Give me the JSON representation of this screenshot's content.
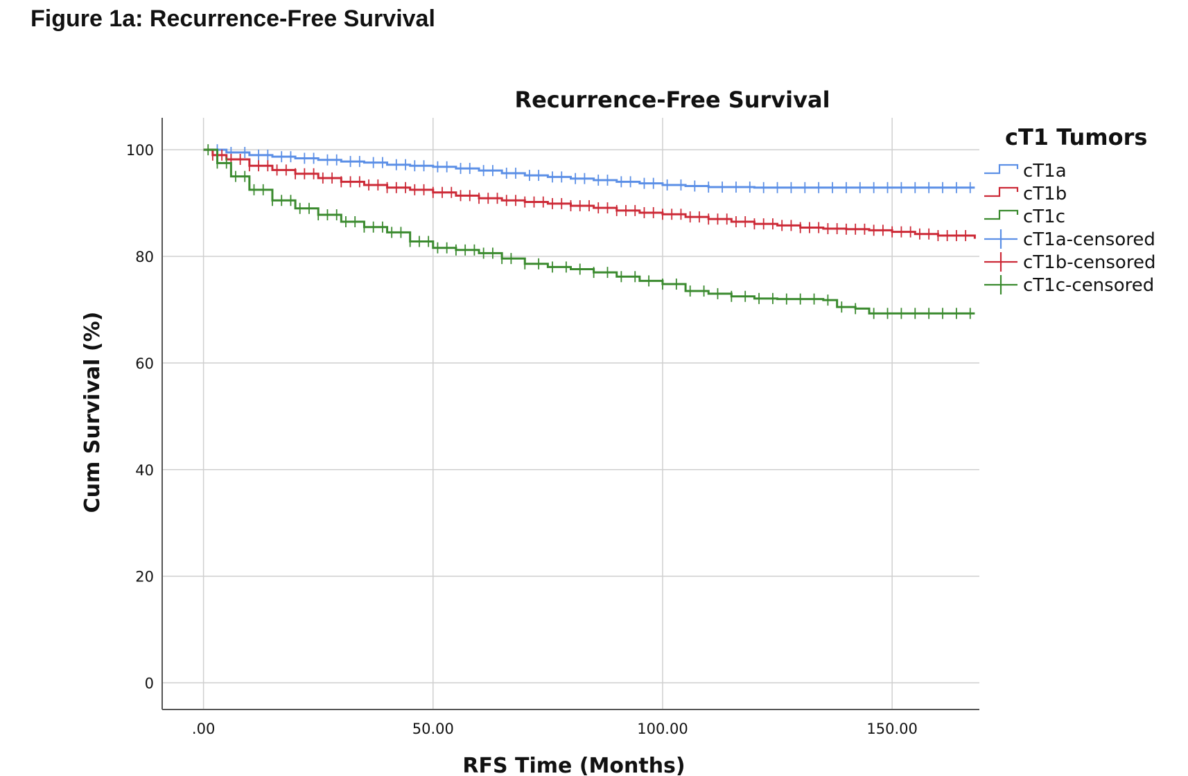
{
  "figure": {
    "heading": "Figure 1a: Recurrence-Free Survival"
  },
  "chart_data": {
    "type": "line",
    "step": true,
    "title": "Recurrence-Free Survival",
    "xlabel": "RFS Time (Months)",
    "ylabel": "Cum Survival (%)",
    "xlim": [
      -9,
      169
    ],
    "ylim": [
      -5,
      106
    ],
    "xticks": [
      0,
      50,
      100,
      150
    ],
    "xtick_labels": [
      ".00",
      "50.00",
      "100.00",
      "150.00"
    ],
    "yticks": [
      0,
      20,
      40,
      60,
      80,
      100
    ],
    "ytick_labels": [
      "0",
      "20",
      "40",
      "60",
      "80",
      "100"
    ],
    "grid": true,
    "legend": {
      "title": "cT1 Tumors",
      "position": "right",
      "entries": [
        "cT1a",
        "cT1b",
        "cT1c",
        "cT1a-censored",
        "cT1b-censored",
        "cT1c-censored"
      ]
    },
    "series": [
      {
        "name": "cT1a",
        "color": "#5b8fe6",
        "x": [
          0,
          5,
          10,
          15,
          20,
          25,
          30,
          35,
          40,
          45,
          50,
          55,
          60,
          65,
          70,
          75,
          80,
          85,
          90,
          95,
          100,
          105,
          110,
          120,
          130,
          140,
          150,
          160,
          168
        ],
        "y": [
          100,
          99.5,
          99,
          98.7,
          98.4,
          98.1,
          97.8,
          97.6,
          97.2,
          97,
          96.8,
          96.5,
          96.1,
          95.6,
          95.2,
          94.9,
          94.6,
          94.3,
          94,
          93.7,
          93.4,
          93.2,
          93,
          92.9,
          92.9,
          92.9,
          92.9,
          92.9,
          92.9
        ],
        "censored_x": [
          3,
          6,
          9,
          12,
          14,
          17,
          19,
          22,
          24,
          27,
          29,
          32,
          34,
          37,
          39,
          42,
          44,
          46,
          48,
          51,
          53,
          56,
          58,
          61,
          63,
          66,
          68,
          71,
          73,
          76,
          78,
          81,
          83,
          86,
          88,
          91,
          93,
          96,
          98,
          101,
          104,
          107,
          110,
          113,
          116,
          119,
          122,
          125,
          128,
          131,
          134,
          137,
          140,
          143,
          146,
          149,
          152,
          155,
          158,
          161,
          164,
          167
        ]
      },
      {
        "name": "cT1b",
        "color": "#cc2936",
        "x": [
          0,
          2,
          5,
          10,
          15,
          20,
          25,
          30,
          35,
          40,
          45,
          50,
          55,
          60,
          65,
          70,
          75,
          80,
          85,
          90,
          95,
          100,
          105,
          110,
          115,
          120,
          125,
          130,
          135,
          140,
          145,
          150,
          155,
          160,
          168
        ],
        "y": [
          100,
          99,
          98.2,
          97,
          96.2,
          95.5,
          94.7,
          94,
          93.4,
          92.9,
          92.5,
          92,
          91.4,
          90.9,
          90.5,
          90.2,
          89.9,
          89.5,
          89.1,
          88.6,
          88.2,
          87.9,
          87.4,
          87,
          86.5,
          86.1,
          85.8,
          85.4,
          85.2,
          85.1,
          84.9,
          84.6,
          84.2,
          83.9,
          83.3
        ],
        "censored_x": [
          2,
          4,
          6,
          8,
          10,
          12,
          14,
          16,
          18,
          20,
          22,
          24,
          26,
          28,
          30,
          32,
          34,
          36,
          38,
          40,
          42,
          44,
          46,
          48,
          50,
          52,
          54,
          56,
          58,
          60,
          62,
          64,
          66,
          68,
          70,
          72,
          74,
          76,
          78,
          80,
          82,
          84,
          86,
          88,
          90,
          92,
          94,
          96,
          98,
          100,
          102,
          104,
          106,
          108,
          110,
          112,
          114,
          116,
          118,
          120,
          122,
          124,
          126,
          128,
          130,
          132,
          134,
          136,
          138,
          140,
          142,
          144,
          146,
          148,
          150,
          152,
          154,
          156,
          158,
          160,
          162,
          164,
          166
        ]
      },
      {
        "name": "cT1c",
        "color": "#3a8a2e",
        "x": [
          0,
          3,
          6,
          10,
          15,
          20,
          25,
          30,
          35,
          40,
          45,
          50,
          55,
          60,
          65,
          70,
          75,
          80,
          85,
          90,
          95,
          100,
          105,
          110,
          115,
          120,
          125,
          130,
          135,
          138,
          142,
          145,
          150,
          155,
          160,
          168
        ],
        "y": [
          100,
          97.5,
          95,
          92.5,
          90.5,
          89,
          87.8,
          86.5,
          85.5,
          84.5,
          82.8,
          81.6,
          81.2,
          80.6,
          79.6,
          78.6,
          78,
          77.6,
          77,
          76.2,
          75.4,
          74.8,
          73.5,
          73,
          72.5,
          72.1,
          72,
          72,
          71.8,
          70.5,
          70.2,
          69.3,
          69.3,
          69.3,
          69.3,
          69.3
        ],
        "censored_x": [
          1,
          3,
          5,
          7,
          9,
          11,
          13,
          15,
          17,
          19,
          21,
          23,
          25,
          27,
          29,
          31,
          33,
          35,
          37,
          39,
          41,
          43,
          45,
          47,
          49,
          51,
          53,
          55,
          57,
          59,
          61,
          63,
          65,
          67,
          70,
          73,
          76,
          79,
          82,
          85,
          88,
          91,
          94,
          97,
          100,
          103,
          106,
          109,
          112,
          115,
          118,
          121,
          124,
          127,
          130,
          133,
          136,
          139,
          142,
          146,
          149,
          152,
          155,
          158,
          161,
          164,
          167
        ]
      }
    ]
  }
}
